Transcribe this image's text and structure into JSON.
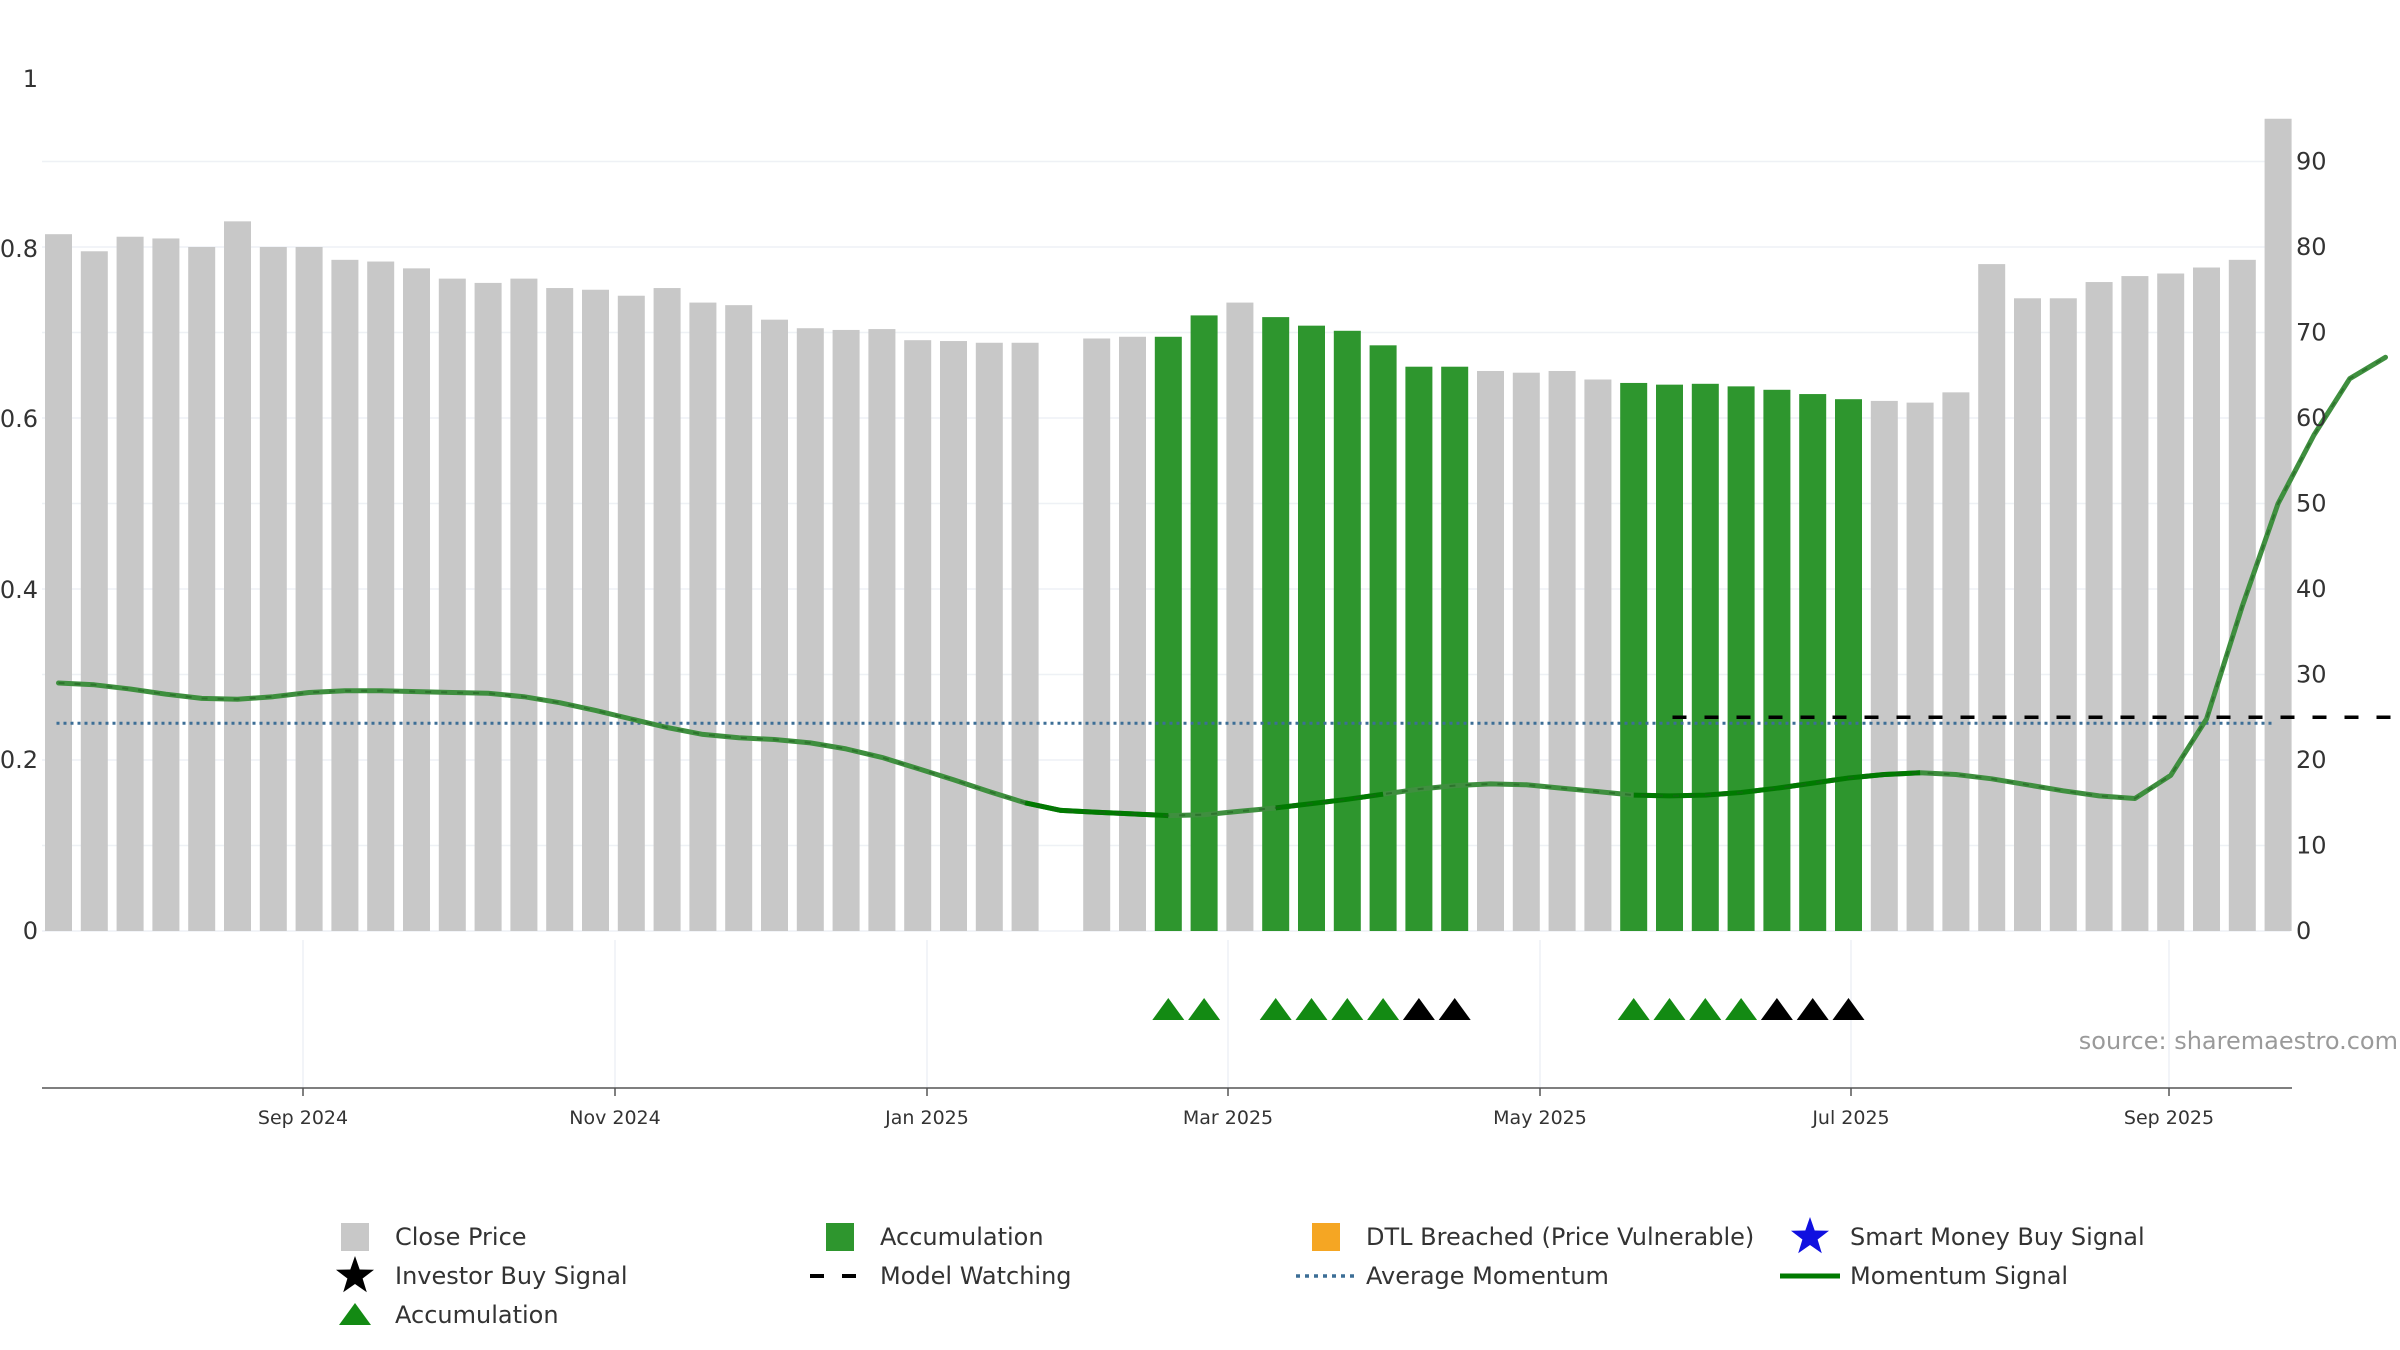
{
  "source_note": "source: sharemaestro.com",
  "colors": {
    "close_price": "#c8c8c8",
    "accumulation_bar": "#2e962e",
    "dtl_breached": "#f5a623",
    "smart_money": "#1010e0",
    "investor_buy": "#000000",
    "accumulation_marker": "#138a13",
    "model_watching": "#000000",
    "average_momentum": "#3c6e96",
    "momentum_signal": "#007a00"
  },
  "legend": [
    {
      "label": "Close Price",
      "symbol": "square",
      "color_key": "close_price"
    },
    {
      "label": "Accumulation",
      "symbol": "square",
      "color_key": "accumulation_bar"
    },
    {
      "label": "DTL Breached (Price Vulnerable)",
      "symbol": "square",
      "color_key": "dtl_breached"
    },
    {
      "label": "Smart Money Buy Signal",
      "symbol": "star",
      "color_key": "smart_money"
    },
    {
      "label": "Investor Buy Signal",
      "symbol": "star",
      "color_key": "investor_buy"
    },
    {
      "label": "Model Watching",
      "symbol": "dash",
      "color_key": "model_watching"
    },
    {
      "label": "Average Momentum",
      "symbol": "dot",
      "color_key": "average_momentum"
    },
    {
      "label": "Momentum Signal",
      "symbol": "line",
      "color_key": "momentum_signal"
    },
    {
      "label": "Accumulation",
      "symbol": "triangle",
      "color_key": "accumulation_marker"
    }
  ],
  "chart_data": {
    "type": "bar",
    "x_tick_labels": [
      "Sep 2024",
      "Nov 2024",
      "Jan 2025",
      "Mar 2025",
      "May 2025",
      "Jul 2025",
      "Sep 2025"
    ],
    "left_axis": {
      "ticks": [
        "0",
        "0.2",
        "0.4",
        "0.6",
        "0.8",
        "1"
      ],
      "range": [
        0,
        1
      ]
    },
    "right_axis": {
      "ticks": [
        "0",
        "10",
        "20",
        "30",
        "40",
        "50",
        "60",
        "70",
        "80",
        "90"
      ],
      "range": [
        0,
        95
      ]
    },
    "grid": true,
    "legend_position": "bottom",
    "close_price": {
      "values": [
        81.5,
        79.5,
        81.2,
        81.0,
        80.0,
        83.0,
        80.0,
        80.0,
        78.5,
        78.3,
        77.5,
        76.3,
        75.8,
        76.3,
        75.2,
        75.0,
        74.3,
        75.2,
        73.5,
        73.2,
        71.5,
        70.5,
        70.3,
        70.4,
        69.1,
        69.0,
        68.8,
        68.8,
        null,
        69.3,
        69.5,
        69.5,
        72.0,
        73.5,
        71.8,
        70.8,
        70.2,
        68.5,
        66.0,
        66.0,
        65.5,
        65.3,
        65.5,
        64.5,
        64.1,
        63.9,
        64.0,
        63.7,
        63.3,
        62.8,
        62.2,
        62.0,
        61.8,
        63.0,
        78.0,
        74.0,
        74.0,
        75.9,
        76.6,
        76.9,
        77.6,
        78.5,
        95.0
      ],
      "accumulation_bar_indices": [
        31,
        32,
        34,
        35,
        36,
        37,
        38,
        39,
        44,
        45,
        46,
        47,
        48,
        49,
        50
      ]
    },
    "markers": {
      "accumulation_indices": [
        31,
        32,
        34,
        35,
        36,
        37,
        44,
        45,
        46,
        47
      ],
      "investor_buy_indices": [
        38,
        39,
        48,
        49,
        50
      ]
    },
    "momentum_signal": {
      "values": [
        29.0,
        28.8,
        28.3,
        27.7,
        27.2,
        27.1,
        27.4,
        27.9,
        28.1,
        28.1,
        28.0,
        27.9,
        27.8,
        27.4,
        26.7,
        25.8,
        24.8,
        23.8,
        23.0,
        22.6,
        22.4,
        22.0,
        21.3,
        20.3,
        19.0,
        17.7,
        16.3,
        15.0,
        14.1,
        13.9,
        13.7,
        13.5,
        13.6,
        14.0,
        14.4,
        14.9,
        15.4,
        16.0,
        16.6,
        17.0,
        17.2,
        17.1,
        16.7,
        16.3,
        15.9,
        15.8,
        15.9,
        16.2,
        16.7,
        17.3,
        17.9,
        18.3,
        18.5,
        18.3,
        17.8,
        17.1,
        16.4,
        15.8,
        15.5,
        18.2,
        24.8,
        38.0,
        50.0,
        58.0,
        64.6,
        67.1
      ],
      "highlighted_ranges": [
        [
          27,
          31
        ],
        [
          34,
          37
        ],
        [
          44,
          52
        ]
      ]
    },
    "average_momentum": 24.3,
    "model_watching": {
      "value": 25.0,
      "from_index": 45,
      "to_index": 65
    }
  }
}
